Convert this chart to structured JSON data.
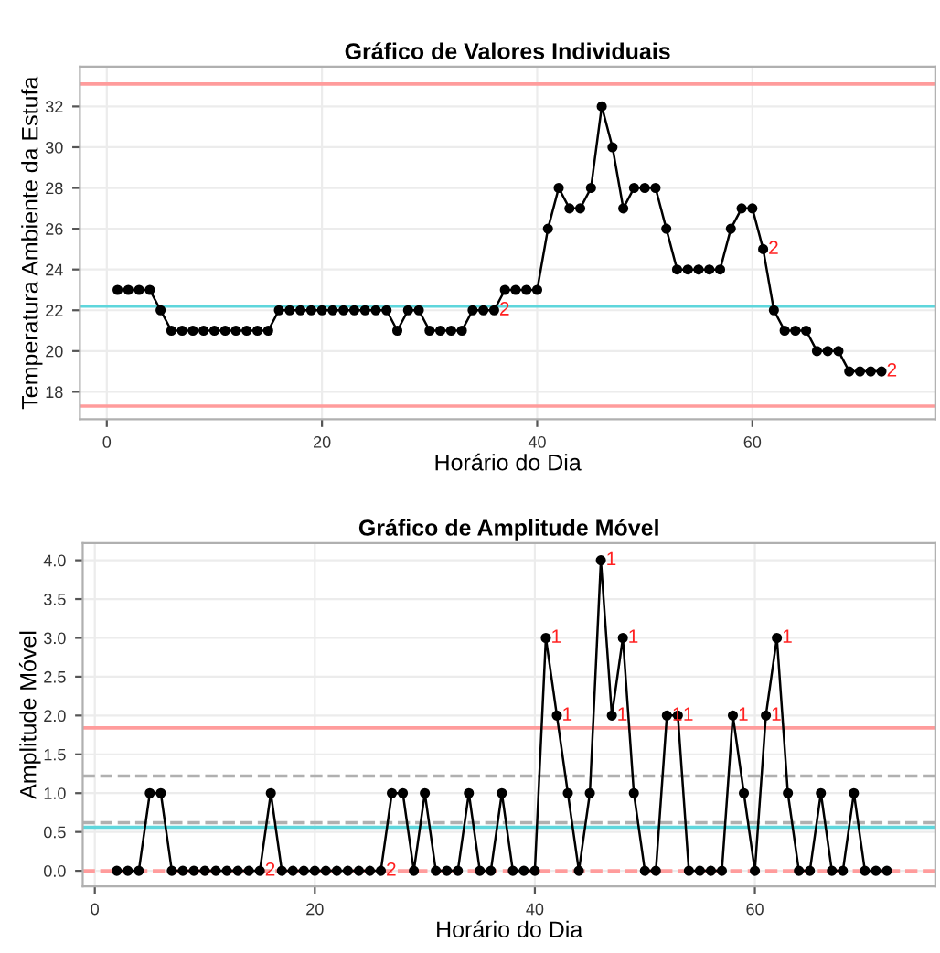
{
  "chart_data": [
    {
      "type": "line",
      "title": "Gráfico de Valores Individuais",
      "xlabel": "Horário do Dia",
      "ylabel": "Temperatura Ambiente da Estufa",
      "x": [
        1,
        2,
        3,
        4,
        5,
        6,
        7,
        8,
        9,
        10,
        11,
        12,
        13,
        14,
        15,
        16,
        17,
        18,
        19,
        20,
        21,
        22,
        23,
        24,
        25,
        26,
        27,
        28,
        29,
        30,
        31,
        32,
        33,
        34,
        35,
        36,
        37,
        38,
        39,
        40,
        41,
        42,
        43,
        44,
        45,
        46,
        47,
        48,
        49,
        50,
        51,
        52,
        53,
        54,
        55,
        56,
        57,
        58,
        59,
        60,
        61,
        62,
        63,
        64,
        65,
        66,
        67,
        68,
        69,
        70,
        71,
        72
      ],
      "series": [
        {
          "color": "#000000",
          "values": [
            23,
            23,
            23,
            23,
            22,
            21,
            21,
            21,
            21,
            21,
            21,
            21,
            21,
            21,
            21,
            22,
            22,
            22,
            22,
            22,
            22,
            22,
            22,
            22,
            22,
            22,
            21,
            22,
            22,
            21,
            21,
            21,
            21,
            22,
            22,
            22,
            23,
            23,
            23,
            23,
            26,
            28,
            27,
            27,
            28,
            32,
            30,
            27,
            28,
            28,
            28,
            26,
            24,
            24,
            24,
            24,
            24,
            26,
            27,
            27,
            25,
            22,
            21,
            21,
            21,
            20,
            20,
            20,
            19,
            19,
            19,
            19
          ]
        }
      ],
      "marker": "circle",
      "line_style": "solid",
      "grid": true,
      "xlim": [
        -2.5,
        77
      ],
      "xticks": [
        0,
        20,
        40,
        60
      ],
      "ylim": [
        16.65,
        33.95
      ],
      "yticks": [
        18,
        20,
        22,
        24,
        26,
        28,
        30,
        32
      ],
      "ref_lines": [
        {
          "axis": "y",
          "value": 33.1,
          "color": "#ff9c9c",
          "line_style": "solid"
        },
        {
          "axis": "y",
          "value": 22.2,
          "color": "#5ed6dc",
          "line_style": "solid"
        },
        {
          "axis": "y",
          "value": 17.3,
          "color": "#ff9c9c",
          "line_style": "solid"
        }
      ],
      "annotations": [
        {
          "text": "2",
          "x": 36,
          "y": 22
        },
        {
          "text": "2",
          "x": 61,
          "y": 25
        },
        {
          "text": "2",
          "x": 72,
          "y": 19
        }
      ]
    },
    {
      "type": "line",
      "title": "Gráfico de Amplitude Móvel",
      "xlabel": "Horário do Dia",
      "ylabel": "Amplitude Móvel",
      "x": [
        2,
        3,
        4,
        5,
        6,
        7,
        8,
        9,
        10,
        11,
        12,
        13,
        14,
        15,
        16,
        17,
        18,
        19,
        20,
        21,
        22,
        23,
        24,
        25,
        26,
        27,
        28,
        29,
        30,
        31,
        32,
        33,
        34,
        35,
        36,
        37,
        38,
        39,
        40,
        41,
        42,
        43,
        44,
        45,
        46,
        47,
        48,
        49,
        50,
        51,
        52,
        53,
        54,
        55,
        56,
        57,
        58,
        59,
        60,
        61,
        62,
        63,
        64,
        65,
        66,
        67,
        68,
        69,
        70,
        71,
        72
      ],
      "series": [
        {
          "color": "#000000",
          "values": [
            0,
            0,
            0,
            1,
            1,
            0,
            0,
            0,
            0,
            0,
            0,
            0,
            0,
            0,
            1,
            0,
            0,
            0,
            0,
            0,
            0,
            0,
            0,
            0,
            0,
            1,
            1,
            0,
            1,
            0,
            0,
            0,
            1,
            0,
            0,
            1,
            0,
            0,
            0,
            3,
            2,
            1,
            0,
            1,
            4,
            2,
            3,
            1,
            0,
            0,
            2,
            2,
            0,
            0,
            0,
            0,
            2,
            1,
            0,
            2,
            3,
            1,
            0,
            0,
            1,
            0,
            0,
            1,
            0,
            0,
            0
          ]
        }
      ],
      "marker": "circle",
      "line_style": "solid",
      "grid": true,
      "xlim": [
        -1.1,
        76.4
      ],
      "xticks": [
        0,
        20,
        40,
        60
      ],
      "ylim": [
        -0.2,
        4.22
      ],
      "yticks": [
        {
          "value": 0,
          "label": "0.0"
        },
        0.5,
        {
          "value": 1,
          "label": "1.0"
        },
        1.5,
        {
          "value": 2,
          "label": "2.0"
        },
        2.5,
        {
          "value": 3,
          "label": "3.0"
        },
        3.5,
        {
          "value": 4,
          "label": "4.0"
        }
      ],
      "ref_lines": [
        {
          "axis": "y",
          "value": 1.84,
          "color": "#ff9c9c",
          "line_style": "solid"
        },
        {
          "axis": "y",
          "value": 1.22,
          "color": "#b0b0b0",
          "line_style": "dashed"
        },
        {
          "axis": "y",
          "value": 0.62,
          "color": "#b0b0b0",
          "line_style": "dashed"
        },
        {
          "axis": "y",
          "value": 0.56,
          "color": "#5ed6dc",
          "line_style": "solid"
        },
        {
          "axis": "y",
          "value": 0,
          "color": "#ff9c9c",
          "line_style": "dashed"
        }
      ],
      "annotations": [
        {
          "text": "2",
          "x": 15,
          "y": 0
        },
        {
          "text": "2",
          "x": 26,
          "y": 0
        },
        {
          "text": "1",
          "x": 41,
          "y": 3
        },
        {
          "text": "1",
          "x": 42,
          "y": 2
        },
        {
          "text": "1",
          "x": 46,
          "y": 4
        },
        {
          "text": "1",
          "x": 47,
          "y": 2
        },
        {
          "text": "1",
          "x": 48,
          "y": 3
        },
        {
          "text": "1",
          "x": 52,
          "y": 2
        },
        {
          "text": "1",
          "x": 53,
          "y": 2
        },
        {
          "text": "1",
          "x": 58,
          "y": 2
        },
        {
          "text": "1",
          "x": 61,
          "y": 2
        },
        {
          "text": "1",
          "x": 62,
          "y": 3
        }
      ]
    }
  ]
}
